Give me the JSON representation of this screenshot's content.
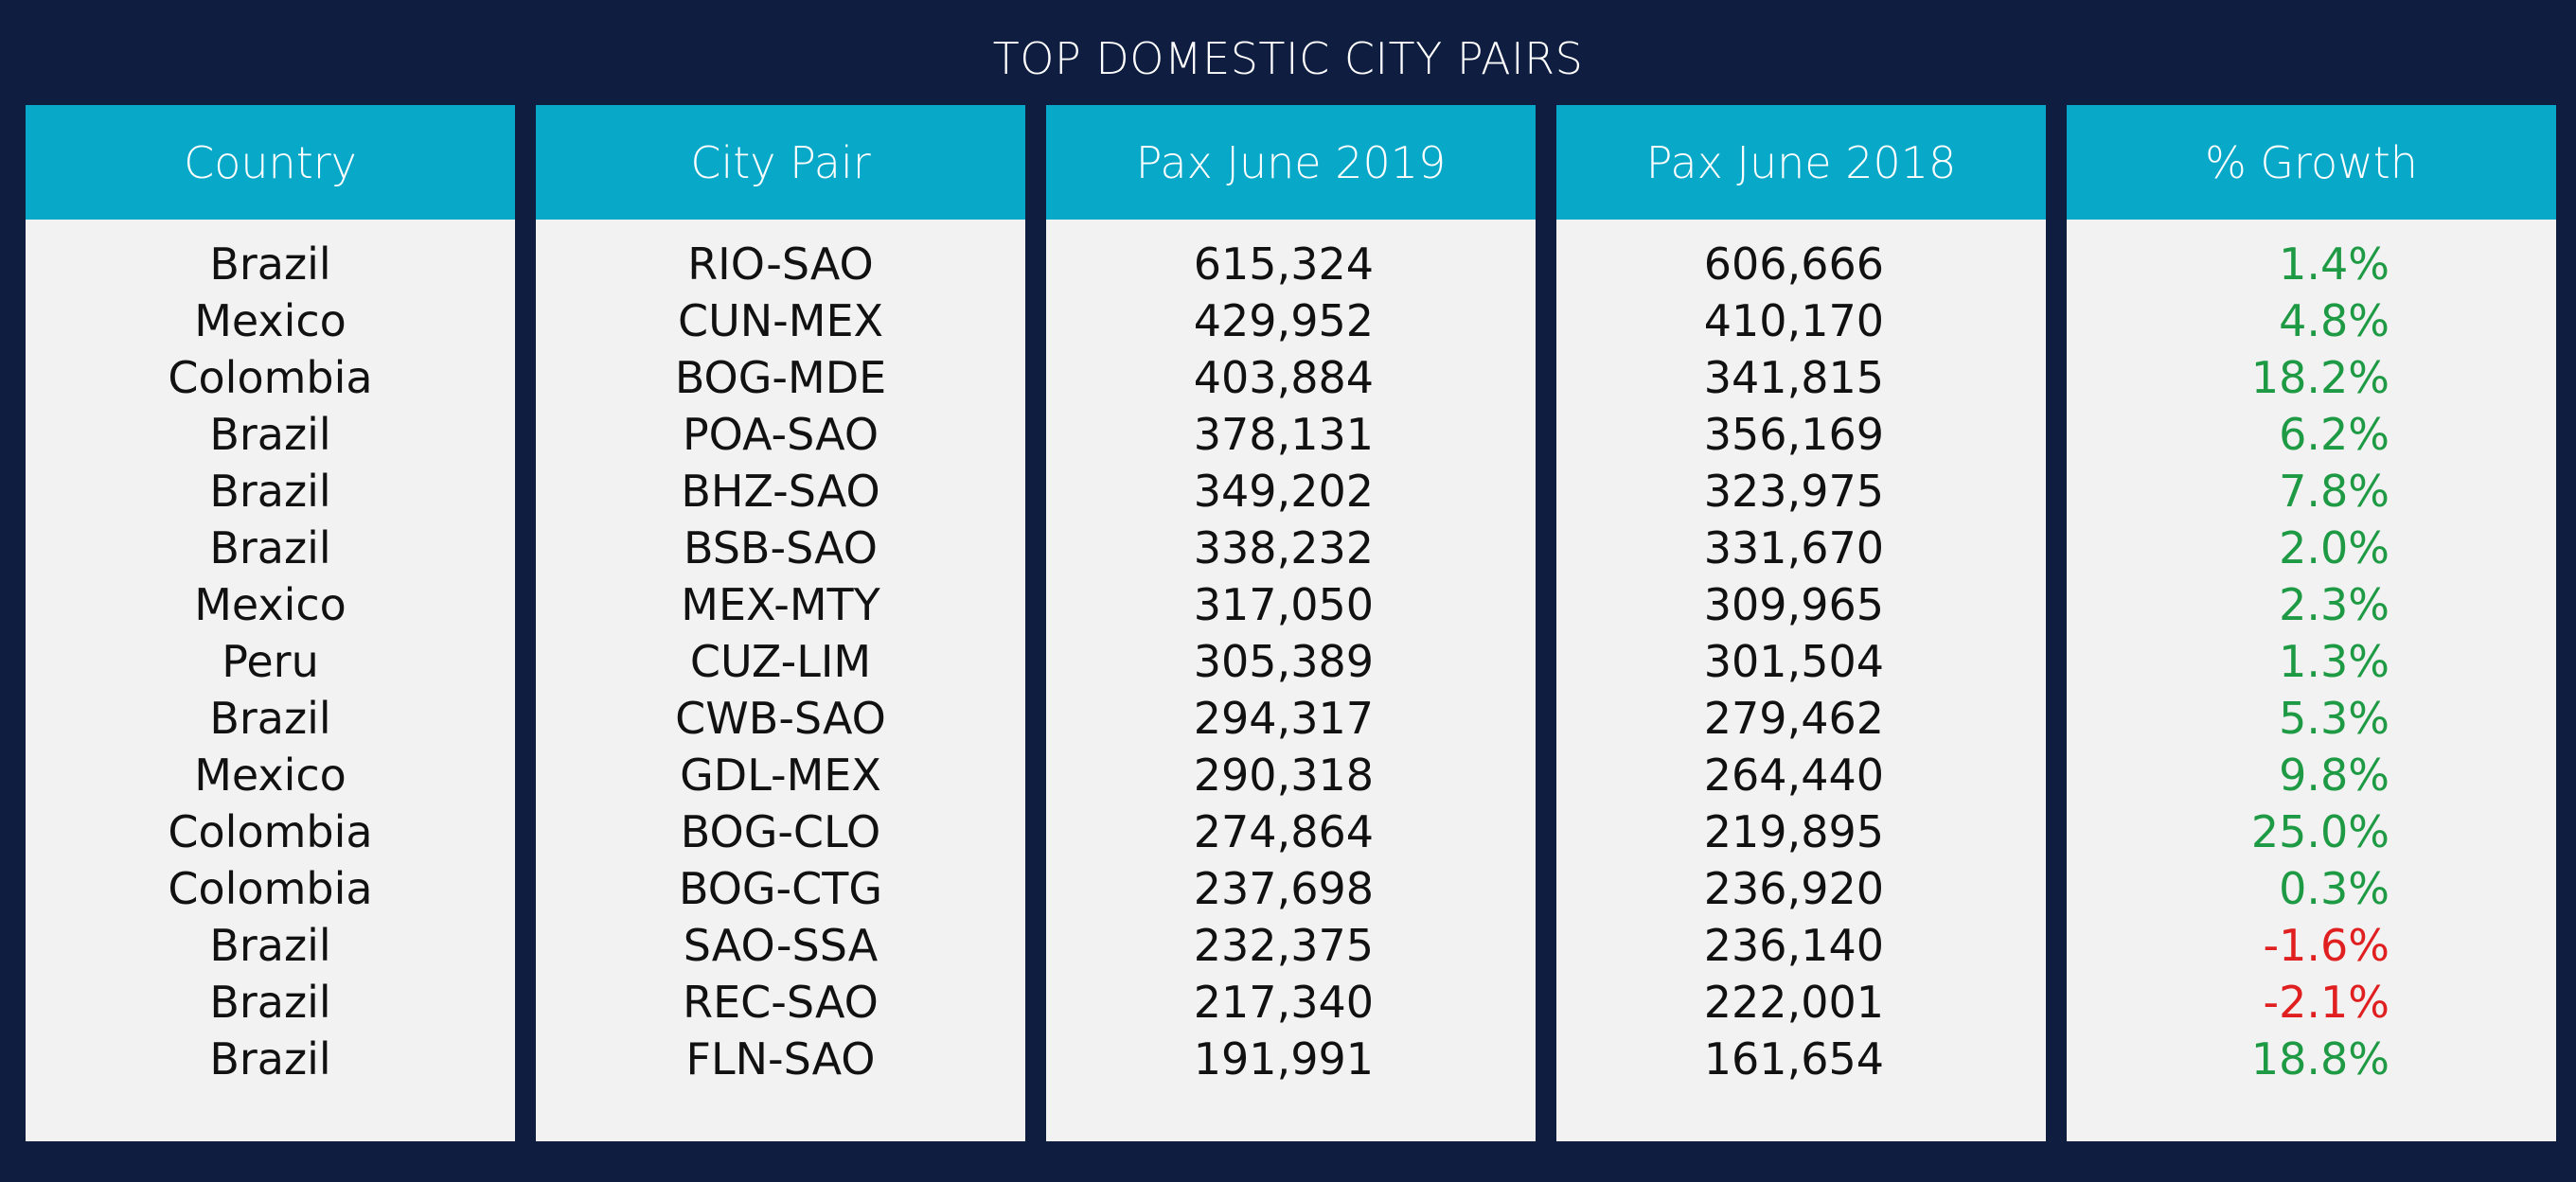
{
  "title": "TOP DOMESTIC CITY PAIRS",
  "colors": {
    "background": "#0e1d40",
    "header": "#08a8c9",
    "panel": "#f2f2f2",
    "positive": "#1e9a44",
    "negative": "#e02020"
  },
  "chart_data": {
    "type": "table",
    "title": "TOP DOMESTIC CITY PAIRS",
    "columns": [
      "Country",
      "City Pair",
      "Pax June 2019",
      "Pax June 2018",
      "% Growth"
    ],
    "rows": [
      [
        "Brazil",
        "RIO-SAO",
        "615,324",
        "606,666",
        "1.4%"
      ],
      [
        "Mexico",
        "CUN-MEX",
        "429,952",
        "410,170",
        "4.8%"
      ],
      [
        "Colombia",
        "BOG-MDE",
        "403,884",
        "341,815",
        "18.2%"
      ],
      [
        "Brazil",
        "POA-SAO",
        "378,131",
        "356,169",
        "6.2%"
      ],
      [
        "Brazil",
        "BHZ-SAO",
        "349,202",
        "323,975",
        "7.8%"
      ],
      [
        "Brazil",
        "BSB-SAO",
        "338,232",
        "331,670",
        "2.0%"
      ],
      [
        "Mexico",
        "MEX-MTY",
        "317,050",
        "309,965",
        "2.3%"
      ],
      [
        "Peru",
        "CUZ-LIM",
        "305,389",
        "301,504",
        "1.3%"
      ],
      [
        "Brazil",
        "CWB-SAO",
        "294,317",
        "279,462",
        "5.3%"
      ],
      [
        "Mexico",
        "GDL-MEX",
        "290,318",
        "264,440",
        "9.8%"
      ],
      [
        "Colombia",
        "BOG-CLO",
        "274,864",
        "219,895",
        "25.0%"
      ],
      [
        "Colombia",
        "BOG-CTG",
        "237,698",
        "236,920",
        "0.3%"
      ],
      [
        "Brazil",
        "SAO-SSA",
        "232,375",
        "236,140",
        "-1.6%"
      ],
      [
        "Brazil",
        "REC-SAO",
        "217,340",
        "222,001",
        "-2.1%"
      ],
      [
        "Brazil",
        "FLN-SAO",
        "191,991",
        "161,654",
        "18.8%"
      ]
    ],
    "growth_values": [
      1.4,
      4.8,
      18.2,
      6.2,
      7.8,
      2.0,
      2.3,
      1.3,
      5.3,
      9.8,
      25.0,
      0.3,
      -1.6,
      -2.1,
      18.8
    ]
  }
}
